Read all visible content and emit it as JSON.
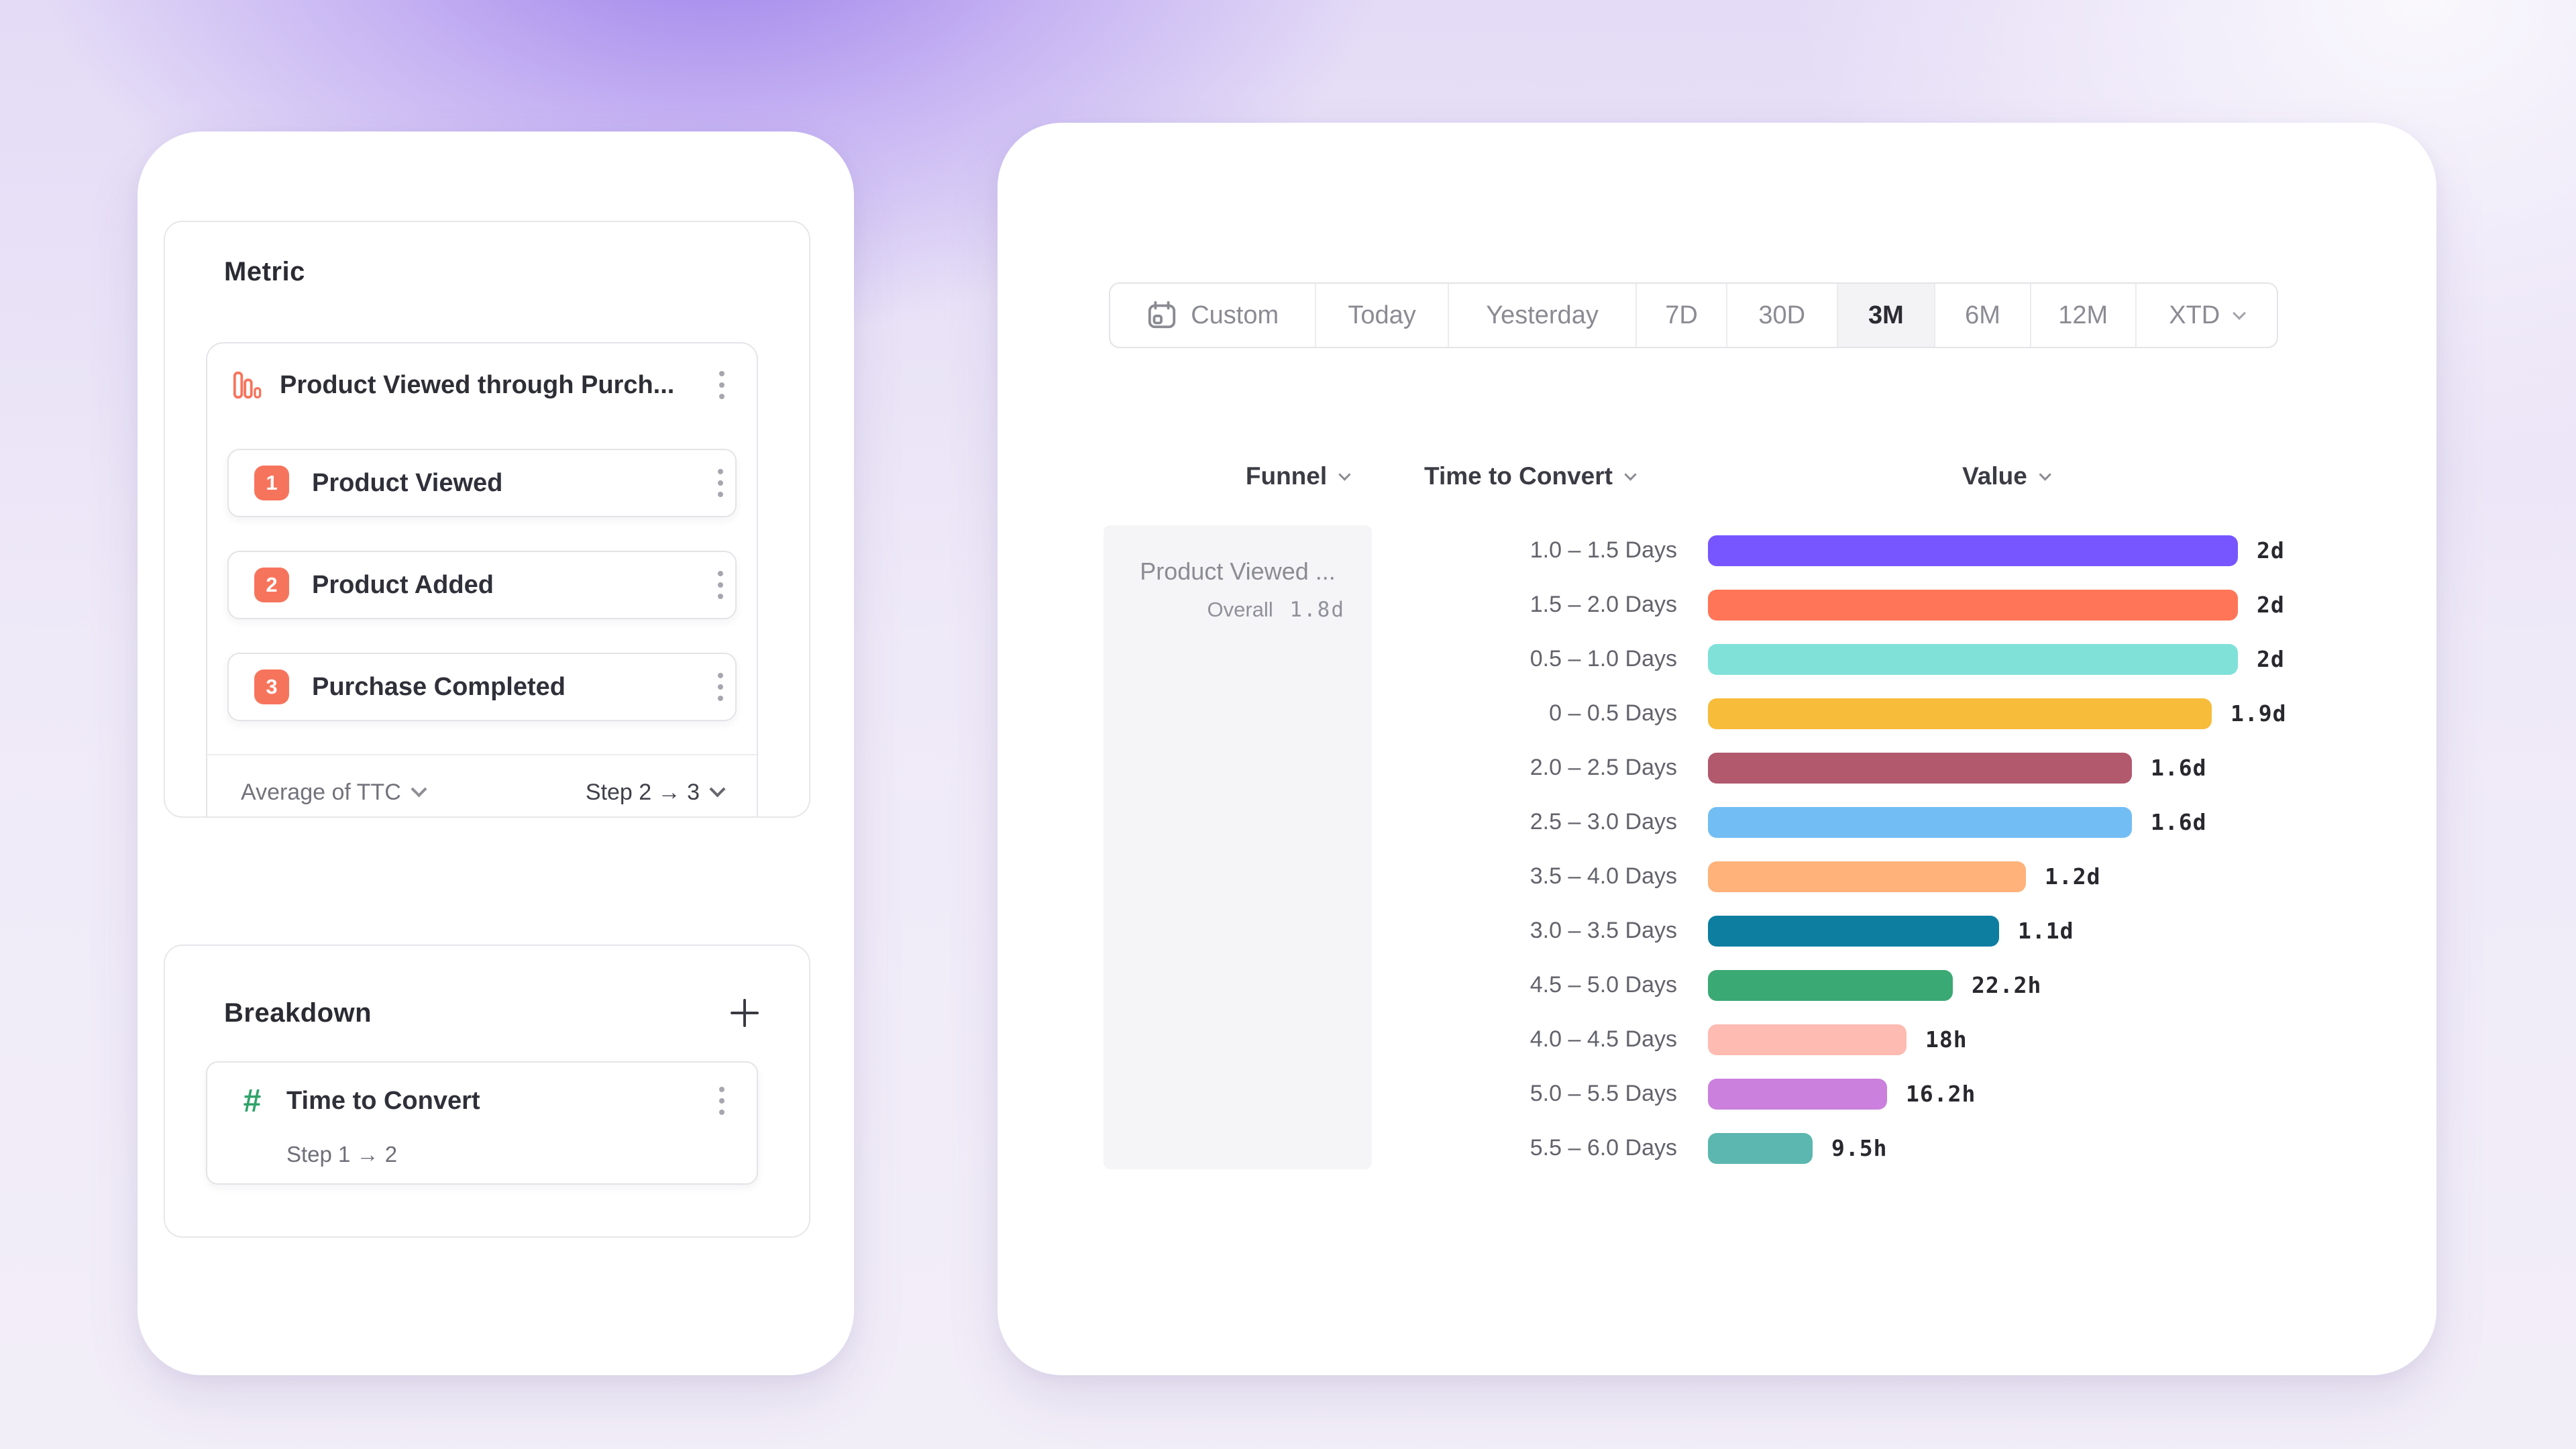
{
  "left_panel": {
    "metric_title": "Metric",
    "metric_group": {
      "title": "Product Viewed through Purch...",
      "steps": [
        {
          "num": "1",
          "label": "Product Viewed"
        },
        {
          "num": "2",
          "label": "Product Added"
        },
        {
          "num": "3",
          "label": "Purchase Completed"
        }
      ],
      "aggregation": "Average of TTC",
      "step_range": "Step 2 → 3"
    },
    "breakdown": {
      "title": "Breakdown",
      "item": {
        "icon": "hash-icon",
        "label": "Time to Convert",
        "sub_label": "Step 1 → 2"
      }
    }
  },
  "right_panel": {
    "date_range": {
      "selected": "3M",
      "segments": [
        {
          "label": "Custom",
          "icon": "calendar-icon"
        },
        {
          "label": "Today"
        },
        {
          "label": "Yesterday"
        },
        {
          "label": "7D"
        },
        {
          "label": "30D"
        },
        {
          "label": "3M",
          "selected": true
        },
        {
          "label": "6M"
        },
        {
          "label": "12M"
        },
        {
          "label": "XTD",
          "chevron": true
        }
      ]
    },
    "table_headers": {
      "funnel": "Funnel",
      "breakdown": "Time to Convert",
      "value": "Value"
    },
    "funnel_cell": {
      "title": "Product Viewed ...",
      "overall_label": "Overall",
      "overall_value": "1.8d"
    }
  },
  "chart_data": {
    "type": "bar",
    "orientation": "horizontal",
    "categories": [
      "1.0 – 1.5 Days",
      "1.5 – 2.0 Days",
      "0.5 – 1.0 Days",
      "0 – 0.5 Days",
      "2.0 – 2.5 Days",
      "2.5 – 3.0 Days",
      "3.5 – 4.0 Days",
      "3.0 – 3.5 Days",
      "4.5 – 5.0 Days",
      "4.0 – 4.5 Days",
      "5.0 – 5.5 Days",
      "5.5 – 6.0 Days"
    ],
    "values": [
      "2d",
      "2d",
      "2d",
      "1.9d",
      "1.6d",
      "1.6d",
      "1.2d",
      "1.1d",
      "22.2h",
      "18h",
      "16.2h",
      "9.5h"
    ],
    "hours": [
      48,
      48,
      48,
      45.6,
      38.4,
      38.4,
      28.8,
      26.4,
      22.2,
      18,
      16.2,
      9.5
    ],
    "max_hours": 48,
    "colors": [
      "#7856FF",
      "#FF7557",
      "#80E1D9",
      "#F8BC3B",
      "#B2596E",
      "#72BEF4",
      "#FFB27A",
      "#0D7EA0",
      "#3BA974",
      "#FEBBB2",
      "#CA80DC",
      "#5BB7AF"
    ],
    "value_axis_hidden": true,
    "grid": false,
    "legend": false
  },
  "colors": {
    "accent_orange": "#F7745C",
    "accent_green": "#2FA36B",
    "selected_segment_bg": "#F3F3F5"
  }
}
